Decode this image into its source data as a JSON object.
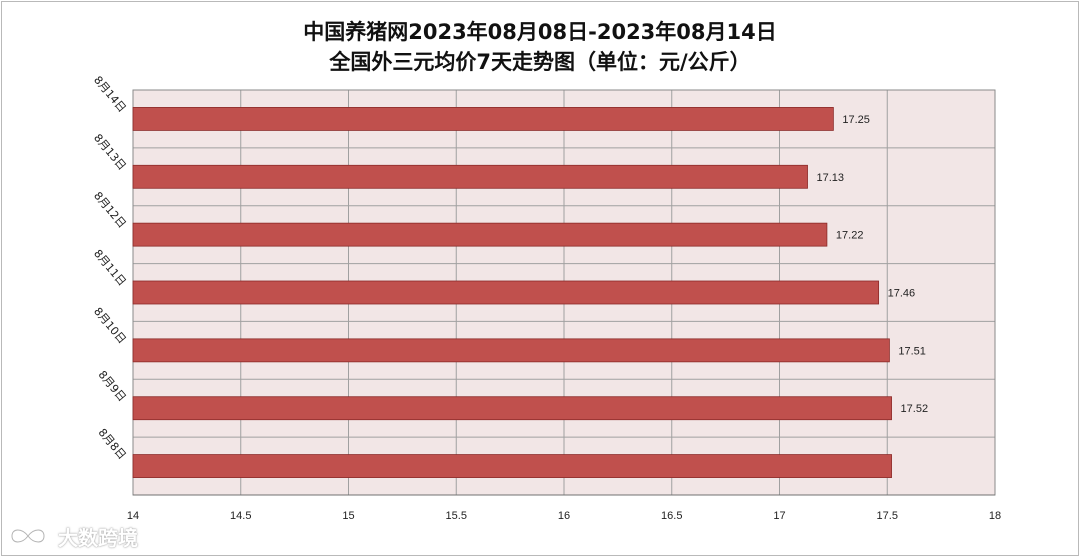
{
  "chart_data": {
    "type": "bar",
    "orientation": "horizontal",
    "title": "中国养猪网2023年08月08日-2023年08月14日",
    "subtitle": "全国外三元均价7天走势图（单位：元/公斤）",
    "categories": [
      "8月14日",
      "8月13日",
      "8月12日",
      "8月11日",
      "8月10日",
      "8月9日",
      "8月8日"
    ],
    "values": [
      17.25,
      17.13,
      17.22,
      17.46,
      17.51,
      17.52,
      17.52
    ],
    "data_labels": [
      "17.25",
      "17.13",
      "17.22",
      "17.46",
      "17.51",
      "17.52",
      ""
    ],
    "xlim": [
      14,
      18
    ],
    "xticks": [
      "14",
      "14.5",
      "15",
      "15.5",
      "16",
      "16.5",
      "17",
      "17.5",
      "18"
    ],
    "xlabel": "",
    "ylabel": "",
    "grid": true,
    "legend": "none",
    "colors": {
      "bar_fill": "#c0504d",
      "bar_stroke": "#8b2a28",
      "plot_background": "#f2e6e6",
      "grid": "#a0a0a0"
    }
  },
  "watermark": {
    "text": "大数跨境",
    "icon": "infinity-logo-icon"
  }
}
